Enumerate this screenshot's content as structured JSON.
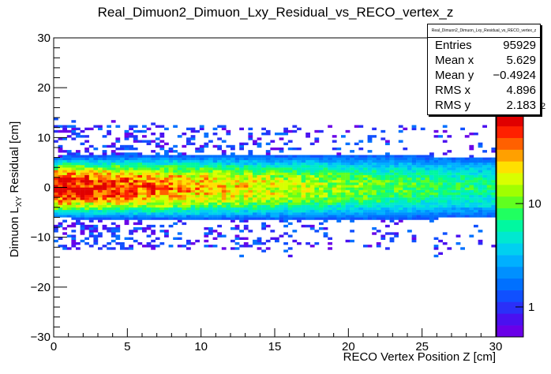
{
  "chart_data": {
    "type": "heatmap",
    "title": "Real_Dimuon2_Dimuon_Lxy_Residual_vs_RECO_vertex_z",
    "xlabel": "RECO Vertex Position Z [cm]",
    "ylabel_main": "Dimuon L",
    "ylabel_sub": "XY",
    "ylabel_tail": " Residual [cm]",
    "xlim": [
      0,
      30
    ],
    "ylim": [
      -30,
      30
    ],
    "xticks": [
      "0",
      "5",
      "10",
      "15",
      "20",
      "25",
      "30"
    ],
    "yticks": [
      "−30",
      "−20",
      "−10",
      "0",
      "10",
      "20",
      "30"
    ],
    "zscale": "log",
    "zticks": [
      "1",
      "10"
    ],
    "zmax_label_fragment": "2",
    "palette": [
      "#6a00e8",
      "#4a10f0",
      "#2a30f8",
      "#1050ff",
      "#0070ff",
      "#0090ff",
      "#00b0ff",
      "#00d0f0",
      "#00e8d0",
      "#00f8a0",
      "#20ff60",
      "#60ff20",
      "#a0ff00",
      "#d8ff00",
      "#ffe000",
      "#ffa000",
      "#ff6000",
      "#ff2000",
      "#e00000"
    ],
    "profile": {
      "description_values": "density center near y=0, spread ~2 cm, data over x 0-30 with tails to about ±12 cm",
      "x_range": [
        0,
        30
      ],
      "y_core_width": 2.2,
      "y_tail_extent": 12.5
    },
    "stats": {
      "name": "Real_Dimuon2_Dimuon_Lxy_Residual_vs_RECO_vertex_z",
      "entries_label": "Entries",
      "entries": "95929",
      "meanx_label": "Mean x",
      "meanx": "5.629",
      "meany_label": "Mean y",
      "meany": "−0.4924",
      "rmsx_label": "RMS x",
      "rmsx": "4.896",
      "rmsy_label": "RMS y",
      "rmsy": "2.183"
    }
  }
}
